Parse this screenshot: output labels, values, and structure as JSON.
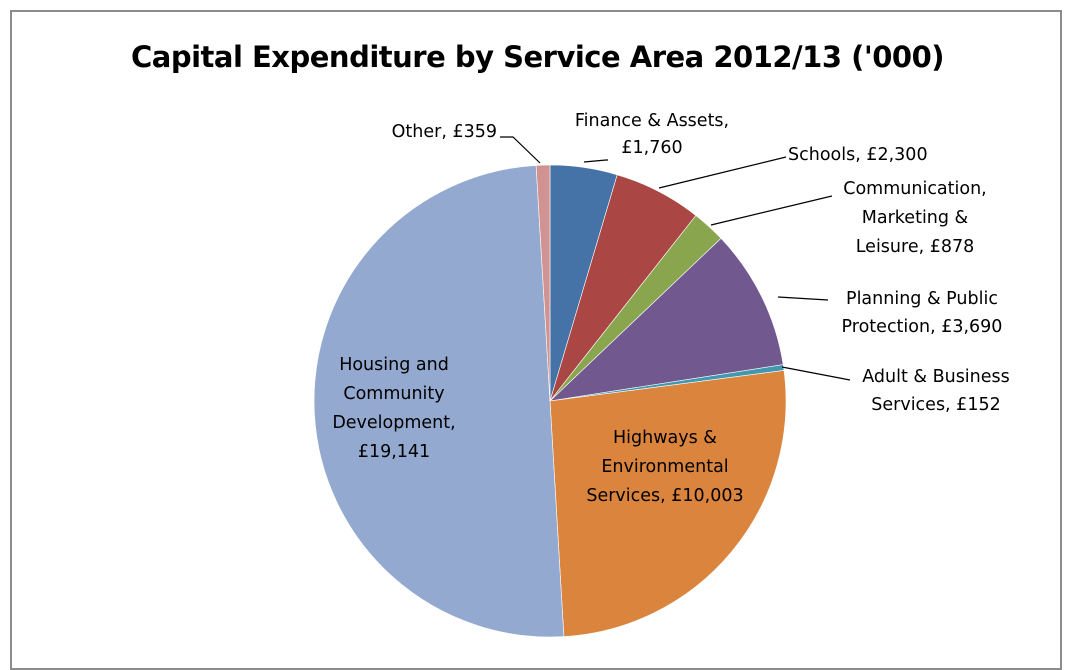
{
  "chart_data": {
    "type": "pie",
    "title": "Capital Expenditure by Service Area 2012/13 ('000)",
    "start_angle": "12 o'clock",
    "direction": "clockwise",
    "slices": [
      {
        "name": "Finance & Assets",
        "value": 1760,
        "label_lines": [
          "Finance & Assets,",
          "£1,760"
        ],
        "color": "#4572A7"
      },
      {
        "name": "Schools",
        "value": 2300,
        "label_lines": [
          "Schools, £2,300"
        ],
        "color": "#AA4643"
      },
      {
        "name": "Communication, Marketing & Leisure",
        "value": 878,
        "label_lines": [
          "Communication,",
          "Marketing &",
          "Leisure, £878"
        ],
        "color": "#89A54E"
      },
      {
        "name": "Planning & Public Protection",
        "value": 3690,
        "label_lines": [
          "Planning & Public",
          "Protection, £3,690"
        ],
        "color": "#71588F"
      },
      {
        "name": "Adult & Business Services",
        "value": 152,
        "label_lines": [
          "Adult & Business",
          "Services, £152"
        ],
        "color": "#4198AF"
      },
      {
        "name": "Highways & Environmental Services",
        "value": 10003,
        "label_lines": [
          "Highways &",
          "Environmental",
          "Services, £10,003"
        ],
        "color": "#DB843D"
      },
      {
        "name": "Housing and Community Development",
        "value": 19141,
        "label_lines": [
          "Housing and",
          "Community",
          "Development,",
          "£19,141"
        ],
        "color": "#93A9CF"
      },
      {
        "name": "Other",
        "value": 359,
        "label_lines": [
          "Other, £359"
        ],
        "color": "#D19392"
      }
    ]
  }
}
